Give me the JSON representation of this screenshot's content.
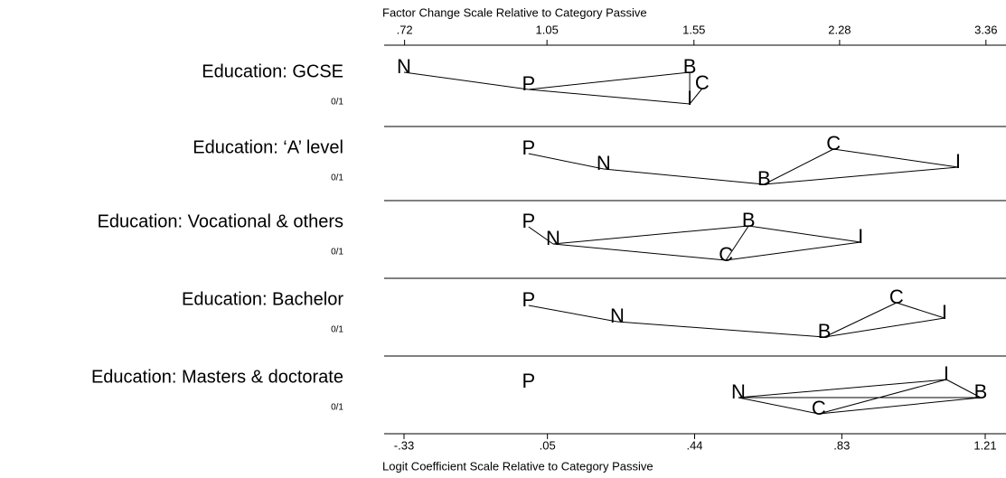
{
  "chart_data": {
    "type": "odds-ratio-plot",
    "xlabel": "Logit Coefficient Scale Relative to Category Passive",
    "x2label": "Factor Change Scale Relative to Category Passive",
    "xlim": [
      -0.33,
      1.21
    ],
    "xticks": [
      {
        "value": -0.33,
        "label": "-.33"
      },
      {
        "value": 0.05,
        "label": ".05"
      },
      {
        "value": 0.44,
        "label": ".44"
      },
      {
        "value": 0.83,
        "label": ".83"
      },
      {
        "value": 1.21,
        "label": "1.21"
      }
    ],
    "x2lim": [
      0.72,
      3.36
    ],
    "x2log": true,
    "x2ticks": [
      {
        "value": 0.72,
        "label": ".72"
      },
      {
        "value": 1.05,
        "label": "1.05"
      },
      {
        "value": 1.55,
        "label": "1.55"
      },
      {
        "value": 2.28,
        "label": "2.28"
      },
      {
        "value": 3.36,
        "label": "3.36"
      }
    ],
    "letters": [
      "P",
      "N",
      "C",
      "I",
      "B"
    ],
    "series": [
      {
        "name": "Education: GCSE",
        "sublabel": "0/1",
        "values": [
          0,
          -0.33,
          0.46,
          0.427,
          0.427
        ],
        "links": [
          [
            0,
            1
          ],
          [
            0,
            4
          ],
          [
            0,
            3
          ],
          [
            4,
            3
          ],
          [
            3,
            2
          ]
        ]
      },
      {
        "name": "Education: ‘A’ level",
        "sublabel": "0/1",
        "values": [
          0,
          0.199,
          0.808,
          1.138,
          0.624
        ],
        "links": [
          [
            0,
            1
          ],
          [
            1,
            4
          ],
          [
            4,
            2
          ],
          [
            2,
            3
          ],
          [
            4,
            3
          ]
        ]
      },
      {
        "name": "Education:  Vocational & others",
        "sublabel": "0/1",
        "values": [
          0,
          0.065,
          0.523,
          0.88,
          0.583
        ],
        "links": [
          [
            0,
            1
          ],
          [
            1,
            4
          ],
          [
            1,
            2
          ],
          [
            4,
            2
          ],
          [
            4,
            3
          ],
          [
            2,
            3
          ]
        ]
      },
      {
        "name": "Education: Bachelor",
        "sublabel": "0/1",
        "values": [
          0,
          0.235,
          0.975,
          1.102,
          0.784
        ],
        "links": [
          [
            0,
            1
          ],
          [
            1,
            4
          ],
          [
            4,
            2
          ],
          [
            2,
            3
          ],
          [
            4,
            3
          ]
        ]
      },
      {
        "name": "Education: Masters & doctorate",
        "sublabel": "0/1",
        "values": [
          0,
          0.556,
          0.769,
          1.107,
          1.198
        ],
        "links": [
          [
            1,
            3
          ],
          [
            1,
            4
          ],
          [
            1,
            2
          ],
          [
            2,
            3
          ],
          [
            2,
            4
          ],
          [
            3,
            4
          ]
        ]
      }
    ]
  }
}
